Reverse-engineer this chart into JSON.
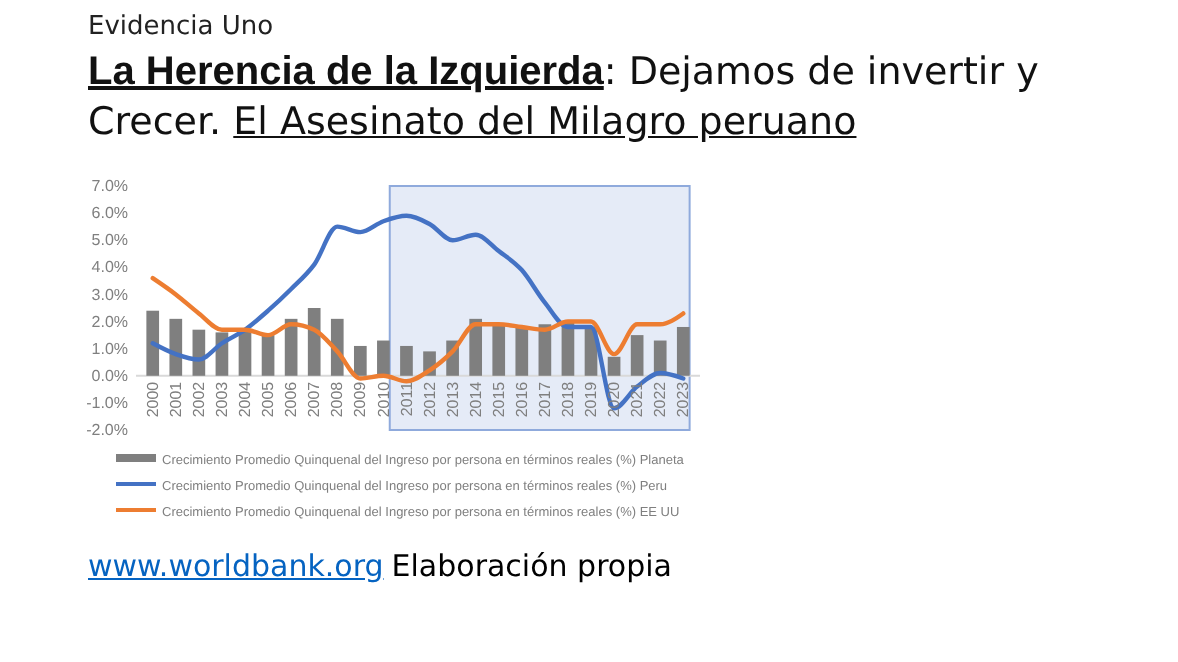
{
  "chart_data": {
    "type": "bar",
    "subtitle": "Evidencia Uno",
    "title": "La Herencia de la Izquierda: Dejamos de invertir y Crecer. El Asesinato del Milagro peruano",
    "categories": [
      "2000",
      "2001",
      "2002",
      "2003",
      "2004",
      "2005",
      "2006",
      "2007",
      "2008",
      "2009",
      "2010",
      "2011",
      "2012",
      "2013",
      "2014",
      "2015",
      "2016",
      "2017",
      "2018",
      "2019",
      "2020",
      "2021",
      "2022",
      "2023"
    ],
    "series": [
      {
        "name": "Crecimiento Promedio Quinquenal del Ingreso por persona en términos reales (%) Planeta",
        "color": "#7f7f7f",
        "values": [
          2.4,
          2.1,
          1.7,
          1.6,
          1.7,
          1.5,
          2.1,
          2.5,
          2.1,
          1.1,
          1.3,
          1.1,
          0.9,
          1.3,
          2.1,
          1.9,
          1.8,
          1.9,
          2.0,
          1.8,
          0.7,
          1.5,
          1.3,
          1.8
        ]
      },
      {
        "name": "Crecimiento Promedio Quinquenal del Ingreso por persona en términos reales (%) Peru",
        "type": "line",
        "color": "#4472c4",
        "values": [
          1.2,
          0.8,
          0.6,
          1.2,
          1.7,
          2.4,
          3.2,
          4.1,
          5.5,
          5.3,
          5.7,
          5.9,
          5.6,
          5.0,
          5.2,
          4.6,
          3.9,
          2.7,
          1.8,
          1.8,
          -1.2,
          -0.4,
          0.1,
          -0.1
        ]
      },
      {
        "name": "Crecimiento Promedio Quinquenal del Ingreso por persona en términos reales (%) EE UU",
        "type": "line",
        "color": "#ed7d31",
        "values": [
          3.6,
          3.0,
          2.3,
          1.7,
          1.7,
          1.5,
          1.9,
          1.7,
          0.9,
          -0.1,
          0.0,
          -0.2,
          0.2,
          0.9,
          1.9,
          1.9,
          1.8,
          1.7,
          2.0,
          2.0,
          0.8,
          1.9,
          1.9,
          2.3
        ]
      }
    ],
    "ylim": [
      -2,
      7
    ],
    "yticks": [
      {
        "value": -2,
        "label": "-2.0%"
      },
      {
        "value": -1,
        "label": "-1.0%"
      },
      {
        "value": 0,
        "label": "0.0%"
      },
      {
        "value": 1,
        "label": "1.0%"
      },
      {
        "value": 2,
        "label": "2.0%"
      },
      {
        "value": 3,
        "label": "3.0%"
      },
      {
        "value": 4,
        "label": "4.0%"
      },
      {
        "value": 5,
        "label": "5.0%"
      },
      {
        "value": 6,
        "label": "6.0%"
      },
      {
        "value": 7,
        "label": "7.0%"
      }
    ],
    "bands": [
      {
        "axis": "x",
        "from": "2011",
        "to": "2023",
        "color": "#dae3f3"
      }
    ],
    "legend": "bottom",
    "grid": false,
    "annotations": [
      "www.worldbank.org",
      "Elaboración propia"
    ]
  }
}
